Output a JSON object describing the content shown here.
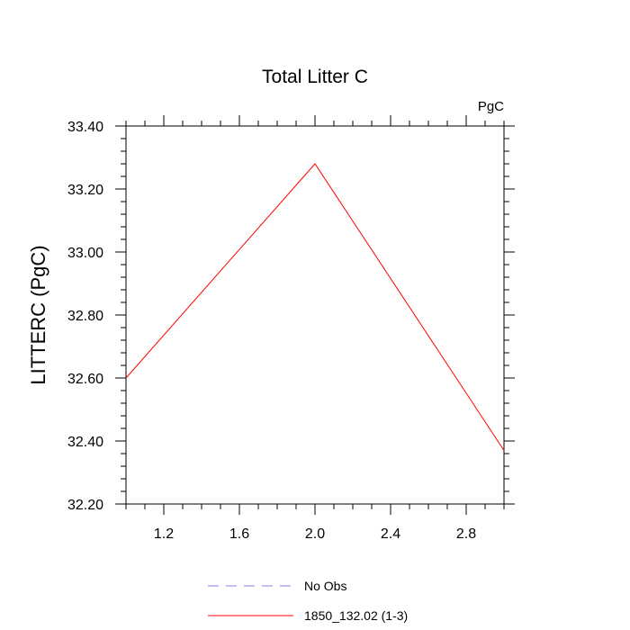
{
  "chart_data": {
    "type": "line",
    "title": "Total Litter C",
    "units_label": "PgC",
    "ylabel": "LITTERC  (PgC)",
    "xlabel": "",
    "xlim": [
      1.0,
      3.0
    ],
    "ylim": [
      32.2,
      33.4
    ],
    "xticks": [
      1.2,
      1.6,
      2.0,
      2.4,
      2.8
    ],
    "xtick_labels": [
      "1.2",
      "1.6",
      "2.0",
      "2.4",
      "2.8"
    ],
    "yticks": [
      32.2,
      32.4,
      32.6,
      32.8,
      33.0,
      33.2,
      33.4
    ],
    "ytick_labels": [
      "32.20",
      "32.40",
      "32.60",
      "32.80",
      "33.00",
      "33.20",
      "33.40"
    ],
    "grid": false,
    "legend_position": "bottom",
    "series": [
      {
        "name": "No Obs",
        "color": "#8080e0",
        "dash": "dashed",
        "x": [],
        "y": []
      },
      {
        "name": "1850_132.02 (1-3)",
        "color": "#ff0000",
        "dash": "solid",
        "x": [
          1.0,
          2.0,
          3.0
        ],
        "y": [
          32.6,
          33.28,
          32.37
        ]
      }
    ]
  }
}
